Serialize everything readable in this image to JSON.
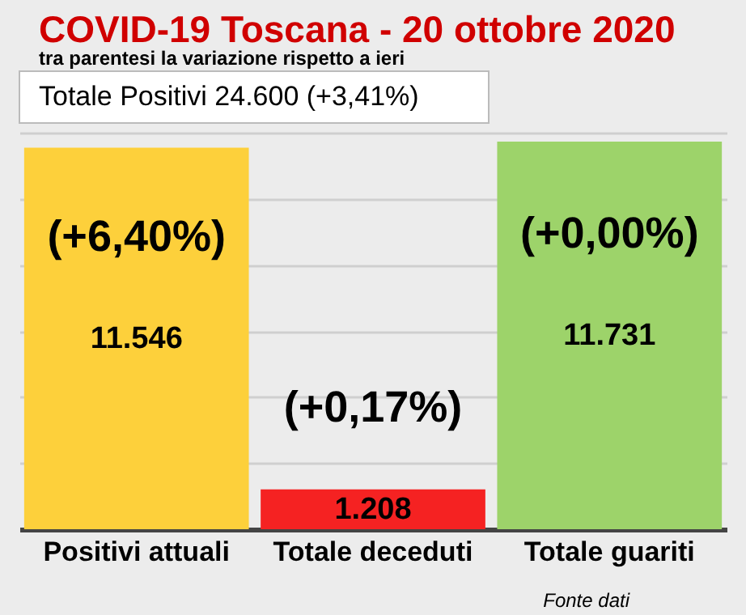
{
  "chart_data": {
    "type": "bar",
    "title": "COVID-19  Toscana - 20 ottobre 2020",
    "subtitle": "tra parentesi la variazione rispetto a ieri",
    "categories": [
      "Positivi attuali",
      "Totale deceduti",
      "Totale guariti"
    ],
    "values": [
      11546,
      1208,
      11731
    ],
    "colors": [
      "#fdd03b",
      "#f52222",
      "#9dd36a"
    ],
    "value_labels": [
      "11.546",
      "1.208",
      "11.731"
    ],
    "ylim": [
      0,
      12000
    ],
    "yticks": [
      {
        "value": 0,
        "label": null
      },
      {
        "value": 2000,
        "label": null
      },
      {
        "value": 4000,
        "label": null
      },
      {
        "value": 6000,
        "label": null
      },
      {
        "value": 8000,
        "label": null
      },
      {
        "value": 10000,
        "label": null
      },
      {
        "value": 12000,
        "label": null
      }
    ],
    "tick_labels": "x",
    "grid": "y",
    "annotations": [
      "Totale Positivi    24.600 (+3,41%)",
      "(+6,40%)",
      "(+0,17%)",
      "(+0,00%)",
      "Fonte dati"
    ]
  }
}
